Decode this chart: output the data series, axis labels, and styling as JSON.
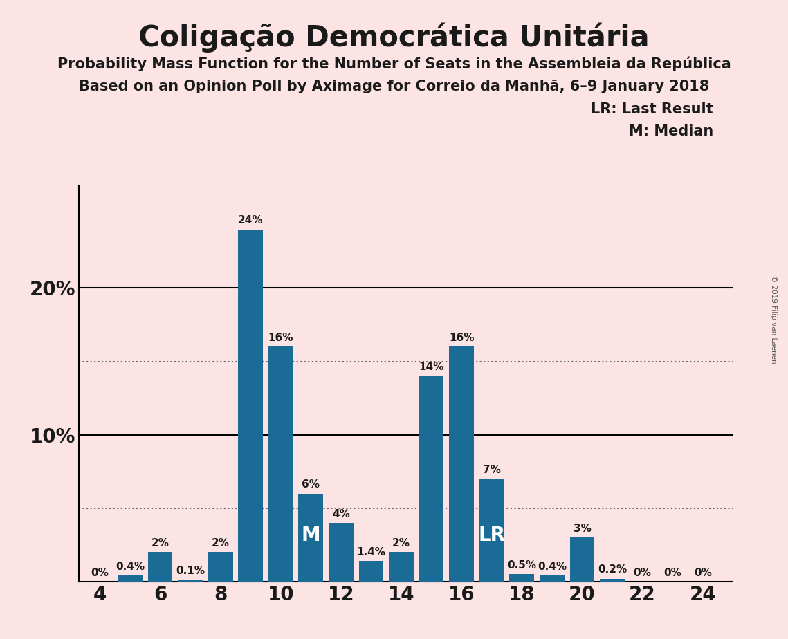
{
  "title": "Coligação Democrática Unitária",
  "subtitle1": "Probability Mass Function for the Number of Seats in the Assembleia da República",
  "subtitle2": "Based on an Opinion Poll by Aximage for Correio da Manhã, 6–9 January 2018",
  "copyright": "© 2019 Filip van Laenen",
  "legend_lr": "LR: Last Result",
  "legend_m": "M: Median",
  "background_color": "#fce4e4",
  "bar_color": "#1a6b96",
  "seats": [
    4,
    5,
    6,
    7,
    8,
    9,
    10,
    11,
    12,
    13,
    14,
    15,
    16,
    17,
    18,
    19,
    20,
    21,
    22,
    23,
    24
  ],
  "probabilities": [
    0.0,
    0.4,
    2.0,
    0.1,
    2.0,
    24.0,
    16.0,
    6.0,
    4.0,
    1.4,
    2.0,
    14.0,
    16.0,
    7.0,
    0.5,
    0.4,
    3.0,
    0.2,
    0.0,
    0.0,
    0.0
  ],
  "labels": [
    "0%",
    "0.4%",
    "2%",
    "0.1%",
    "2%",
    "24%",
    "16%",
    "6%",
    "4%",
    "1.4%",
    "2%",
    "14%",
    "16%",
    "7%",
    "0.5%",
    "0.4%",
    "3%",
    "0.2%",
    "0%",
    "0%",
    "0%"
  ],
  "median_seat": 11,
  "last_result_seat": 17,
  "hline1_y": 15.0,
  "hline2_y": 5.0,
  "xlim": [
    3.3,
    25.0
  ],
  "ylim": [
    0,
    27
  ],
  "title_fontsize": 30,
  "subtitle_fontsize": 15,
  "bar_label_fontsize": 11,
  "tick_fontsize": 20,
  "legend_fontsize": 15,
  "marker_fontsize": 20
}
